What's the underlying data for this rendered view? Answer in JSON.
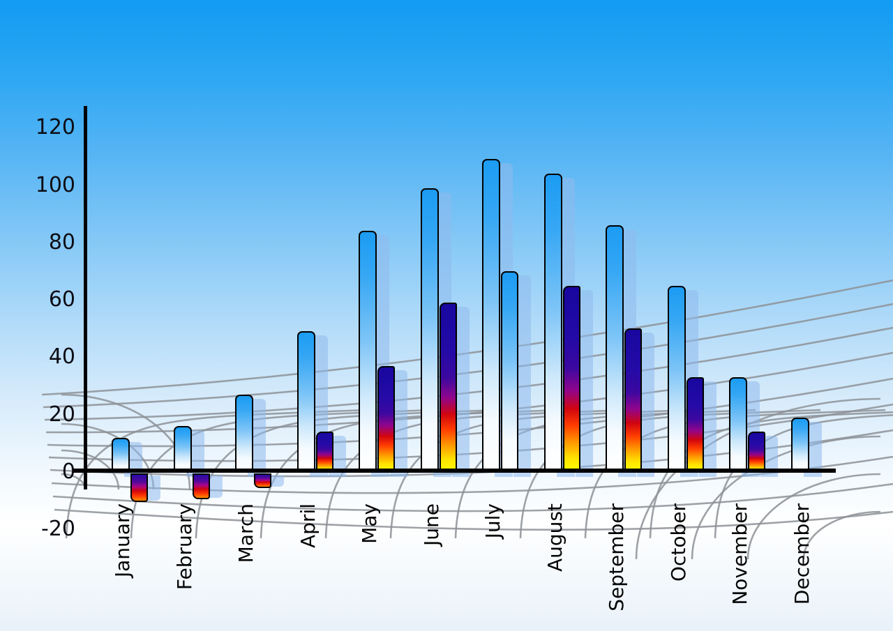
{
  "figure": {
    "kind": "3d-style monthly bar chart on sky-blue gradient background",
    "title": "",
    "legend": "none"
  },
  "chart_data": {
    "type": "bar",
    "title": "",
    "xlabel": "",
    "ylabel": "",
    "categories": [
      "January",
      "February",
      "March",
      "April",
      "May",
      "June",
      "July",
      "August",
      "September",
      "October",
      "November",
      "December"
    ],
    "series": [
      {
        "name": "Series 1 (blue gradient bars)",
        "values": [
          12,
          16,
          27,
          49,
          84,
          99,
          109,
          104,
          86,
          65,
          33,
          19
        ]
      },
      {
        "name": "Series 2 (flame gradient bars)",
        "values": [
          -11,
          -10,
          -6,
          14,
          37,
          59,
          70,
          65,
          50,
          33,
          14,
          null
        ]
      }
    ],
    "series2_styles": [
      "fire",
      "fire",
      "fire",
      "fire",
      "fire",
      "fire",
      "blue",
      "fire",
      "fire",
      "fire",
      "fire",
      null
    ],
    "y_ticks": [
      120,
      100,
      80,
      60,
      40,
      20,
      0,
      -20
    ],
    "ylim": [
      -20,
      120
    ],
    "grid": "decorative gray 3D perspective mesh behind bars",
    "legend_position": "none",
    "notes": "Each bar has a translucent light-blue 3D shadow copy offset right; July series-2 bar uses the blue-white gradient instead of the flame gradient; December has no series-2 bar.",
    "colors": {
      "sky_top": "#119bf2",
      "sky_bottom": "#e9f1f9",
      "bar_blue_top": "#1b9cf3",
      "bar_blue_bottom": "#ffffff",
      "flame_navy": "#18079f",
      "flame_red": "#d00510",
      "flame_yellow": "#fffb00",
      "bar_shadow": "rgba(143,185,236,0.55)",
      "mesh_gray": "#8d9297",
      "axis": "#000000",
      "tick_text": "#0d0d14"
    }
  }
}
